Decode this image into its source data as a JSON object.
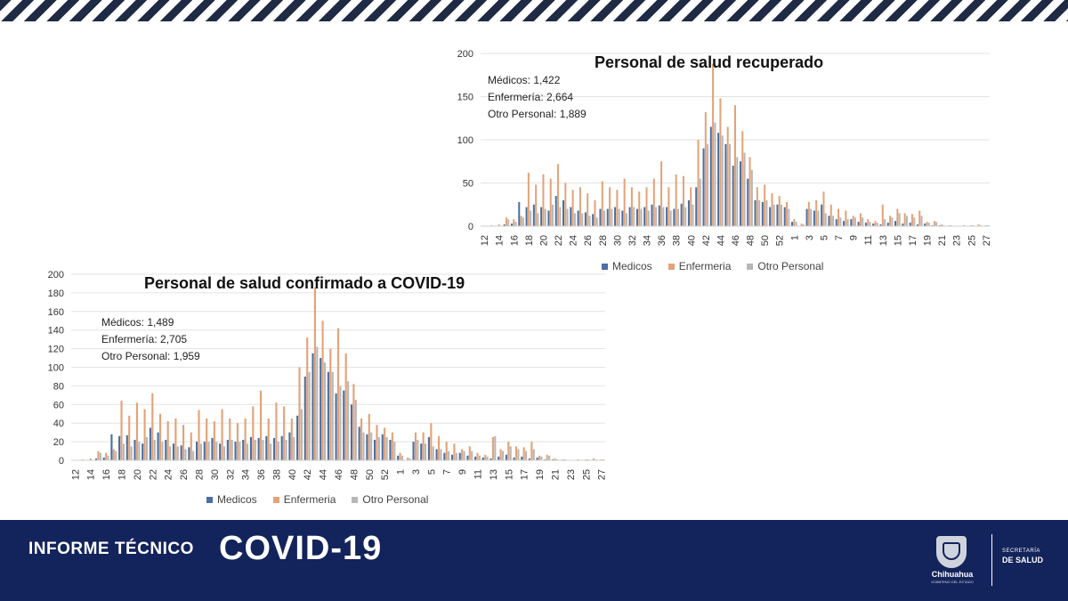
{
  "footer": {
    "informe": "INFORME TÉCNICO",
    "covid": "COVID-19",
    "state": "Chihuahua",
    "state_sub": "GOBIERNO DEL ESTADO",
    "secretaria": "SECRETARÍA",
    "salud": "DE SALUD"
  },
  "legend": {
    "medicos": "Medicos",
    "enfermeria": "Enfermeria",
    "otro": "Otro Personal"
  },
  "colors": {
    "medicos": "#4a6fa0",
    "enfermeria": "#e3a277",
    "otro": "#b7b7b7",
    "banner": "#13235b"
  },
  "chart_data": [
    {
      "id": "top",
      "type": "bar",
      "title": "Personal de salud recuperado",
      "annotations": [
        "Médicos: 1,422",
        "Enfermería: 2,664",
        "Otro Personal: 1,889"
      ],
      "ylim": [
        0,
        200
      ],
      "yticks": [
        0,
        50,
        100,
        150,
        200
      ],
      "grid": true,
      "legend_position": "bottom",
      "categories": [
        12,
        13,
        14,
        15,
        16,
        17,
        18,
        19,
        20,
        21,
        22,
        23,
        24,
        25,
        26,
        27,
        28,
        29,
        30,
        31,
        32,
        33,
        34,
        35,
        36,
        37,
        38,
        39,
        40,
        41,
        42,
        43,
        44,
        45,
        46,
        47,
        48,
        49,
        50,
        51,
        52,
        53,
        1,
        2,
        3,
        4,
        5,
        6,
        7,
        8,
        9,
        10,
        11,
        12,
        13,
        14,
        15,
        16,
        17,
        18,
        19,
        20,
        21,
        22,
        23,
        24,
        25,
        26,
        27
      ],
      "series": [
        {
          "name": "Medicos",
          "values": [
            0,
            0,
            0,
            2,
            3,
            28,
            22,
            25,
            22,
            18,
            35,
            30,
            22,
            18,
            16,
            14,
            20,
            20,
            22,
            18,
            22,
            20,
            22,
            25,
            24,
            22,
            20,
            26,
            30,
            45,
            90,
            115,
            108,
            95,
            70,
            75,
            55,
            30,
            28,
            22,
            25,
            22,
            5,
            0,
            20,
            18,
            25,
            12,
            8,
            6,
            8,
            5,
            4,
            3,
            2,
            4,
            6,
            3,
            4,
            2,
            3,
            1,
            1,
            0,
            0,
            0,
            0,
            0,
            0
          ]
        },
        {
          "name": "Enfermeria",
          "values": [
            0,
            1,
            2,
            10,
            8,
            12,
            62,
            48,
            60,
            55,
            72,
            50,
            42,
            45,
            38,
            30,
            52,
            45,
            42,
            55,
            45,
            40,
            45,
            55,
            75,
            45,
            60,
            58,
            45,
            100,
            132,
            188,
            148,
            115,
            140,
            110,
            80,
            45,
            48,
            38,
            35,
            28,
            8,
            3,
            28,
            30,
            40,
            25,
            20,
            18,
            12,
            15,
            8,
            6,
            25,
            12,
            20,
            15,
            14,
            18,
            5,
            6,
            2,
            1,
            0,
            1,
            1,
            2,
            1
          ]
        },
        {
          "name": "Otro Personal",
          "values": [
            0,
            0,
            0,
            8,
            5,
            10,
            18,
            15,
            20,
            25,
            22,
            20,
            15,
            15,
            12,
            10,
            18,
            20,
            20,
            15,
            22,
            20,
            18,
            22,
            22,
            18,
            20,
            22,
            25,
            55,
            95,
            120,
            105,
            95,
            80,
            85,
            65,
            30,
            30,
            25,
            25,
            20,
            5,
            2,
            20,
            18,
            15,
            12,
            10,
            8,
            10,
            10,
            5,
            4,
            8,
            10,
            15,
            12,
            10,
            12,
            4,
            5,
            1,
            1,
            0,
            0,
            1,
            1,
            1
          ]
        }
      ]
    },
    {
      "id": "bottom",
      "type": "bar",
      "title": "Personal de salud confirmado a COVID-19",
      "annotations": [
        "Médicos: 1,489",
        "Enfermería: 2,705",
        "Otro Personal: 1,959"
      ],
      "ylim": [
        0,
        200
      ],
      "yticks": [
        0,
        20,
        40,
        60,
        80,
        100,
        120,
        140,
        160,
        180,
        200
      ],
      "grid": true,
      "legend_position": "bottom",
      "categories": [
        12,
        13,
        14,
        15,
        16,
        17,
        18,
        19,
        20,
        21,
        22,
        23,
        24,
        25,
        26,
        27,
        28,
        29,
        30,
        31,
        32,
        33,
        34,
        35,
        36,
        37,
        38,
        39,
        40,
        41,
        42,
        43,
        44,
        45,
        46,
        47,
        48,
        49,
        50,
        51,
        52,
        53,
        1,
        2,
        3,
        4,
        5,
        6,
        7,
        8,
        9,
        10,
        11,
        12,
        13,
        14,
        15,
        16,
        17,
        18,
        19,
        20,
        21,
        22,
        23,
        24,
        25,
        26,
        27
      ],
      "series": [
        {
          "name": "Medicos",
          "values": [
            0,
            0,
            0,
            2,
            3,
            28,
            26,
            27,
            22,
            18,
            35,
            30,
            22,
            18,
            16,
            14,
            20,
            20,
            24,
            18,
            22,
            20,
            22,
            25,
            24,
            26,
            24,
            26,
            30,
            48,
            90,
            115,
            110,
            95,
            72,
            75,
            60,
            36,
            28,
            22,
            28,
            22,
            5,
            0,
            20,
            18,
            25,
            12,
            8,
            6,
            8,
            5,
            4,
            3,
            2,
            4,
            6,
            3,
            4,
            2,
            3,
            1,
            1,
            0,
            0,
            0,
            0,
            0,
            0
          ]
        },
        {
          "name": "Enfermeria",
          "values": [
            0,
            1,
            2,
            10,
            8,
            12,
            64,
            48,
            62,
            55,
            72,
            50,
            42,
            45,
            38,
            30,
            54,
            45,
            42,
            55,
            45,
            40,
            45,
            58,
            75,
            45,
            62,
            58,
            45,
            100,
            132,
            186,
            150,
            120,
            142,
            115,
            82,
            45,
            50,
            38,
            35,
            30,
            8,
            3,
            30,
            30,
            40,
            26,
            20,
            18,
            12,
            15,
            8,
            6,
            25,
            12,
            20,
            15,
            14,
            20,
            5,
            6,
            2,
            1,
            0,
            1,
            1,
            2,
            1
          ]
        },
        {
          "name": "Otro Personal",
          "values": [
            0,
            0,
            0,
            8,
            5,
            10,
            18,
            15,
            20,
            25,
            22,
            20,
            15,
            15,
            12,
            10,
            18,
            20,
            20,
            15,
            22,
            20,
            18,
            22,
            22,
            18,
            20,
            22,
            25,
            55,
            95,
            122,
            105,
            95,
            80,
            85,
            65,
            30,
            30,
            25,
            25,
            20,
            5,
            2,
            22,
            18,
            15,
            12,
            10,
            8,
            10,
            10,
            5,
            4,
            26,
            10,
            15,
            12,
            10,
            12,
            4,
            5,
            1,
            1,
            0,
            0,
            1,
            1,
            1
          ]
        }
      ]
    }
  ]
}
